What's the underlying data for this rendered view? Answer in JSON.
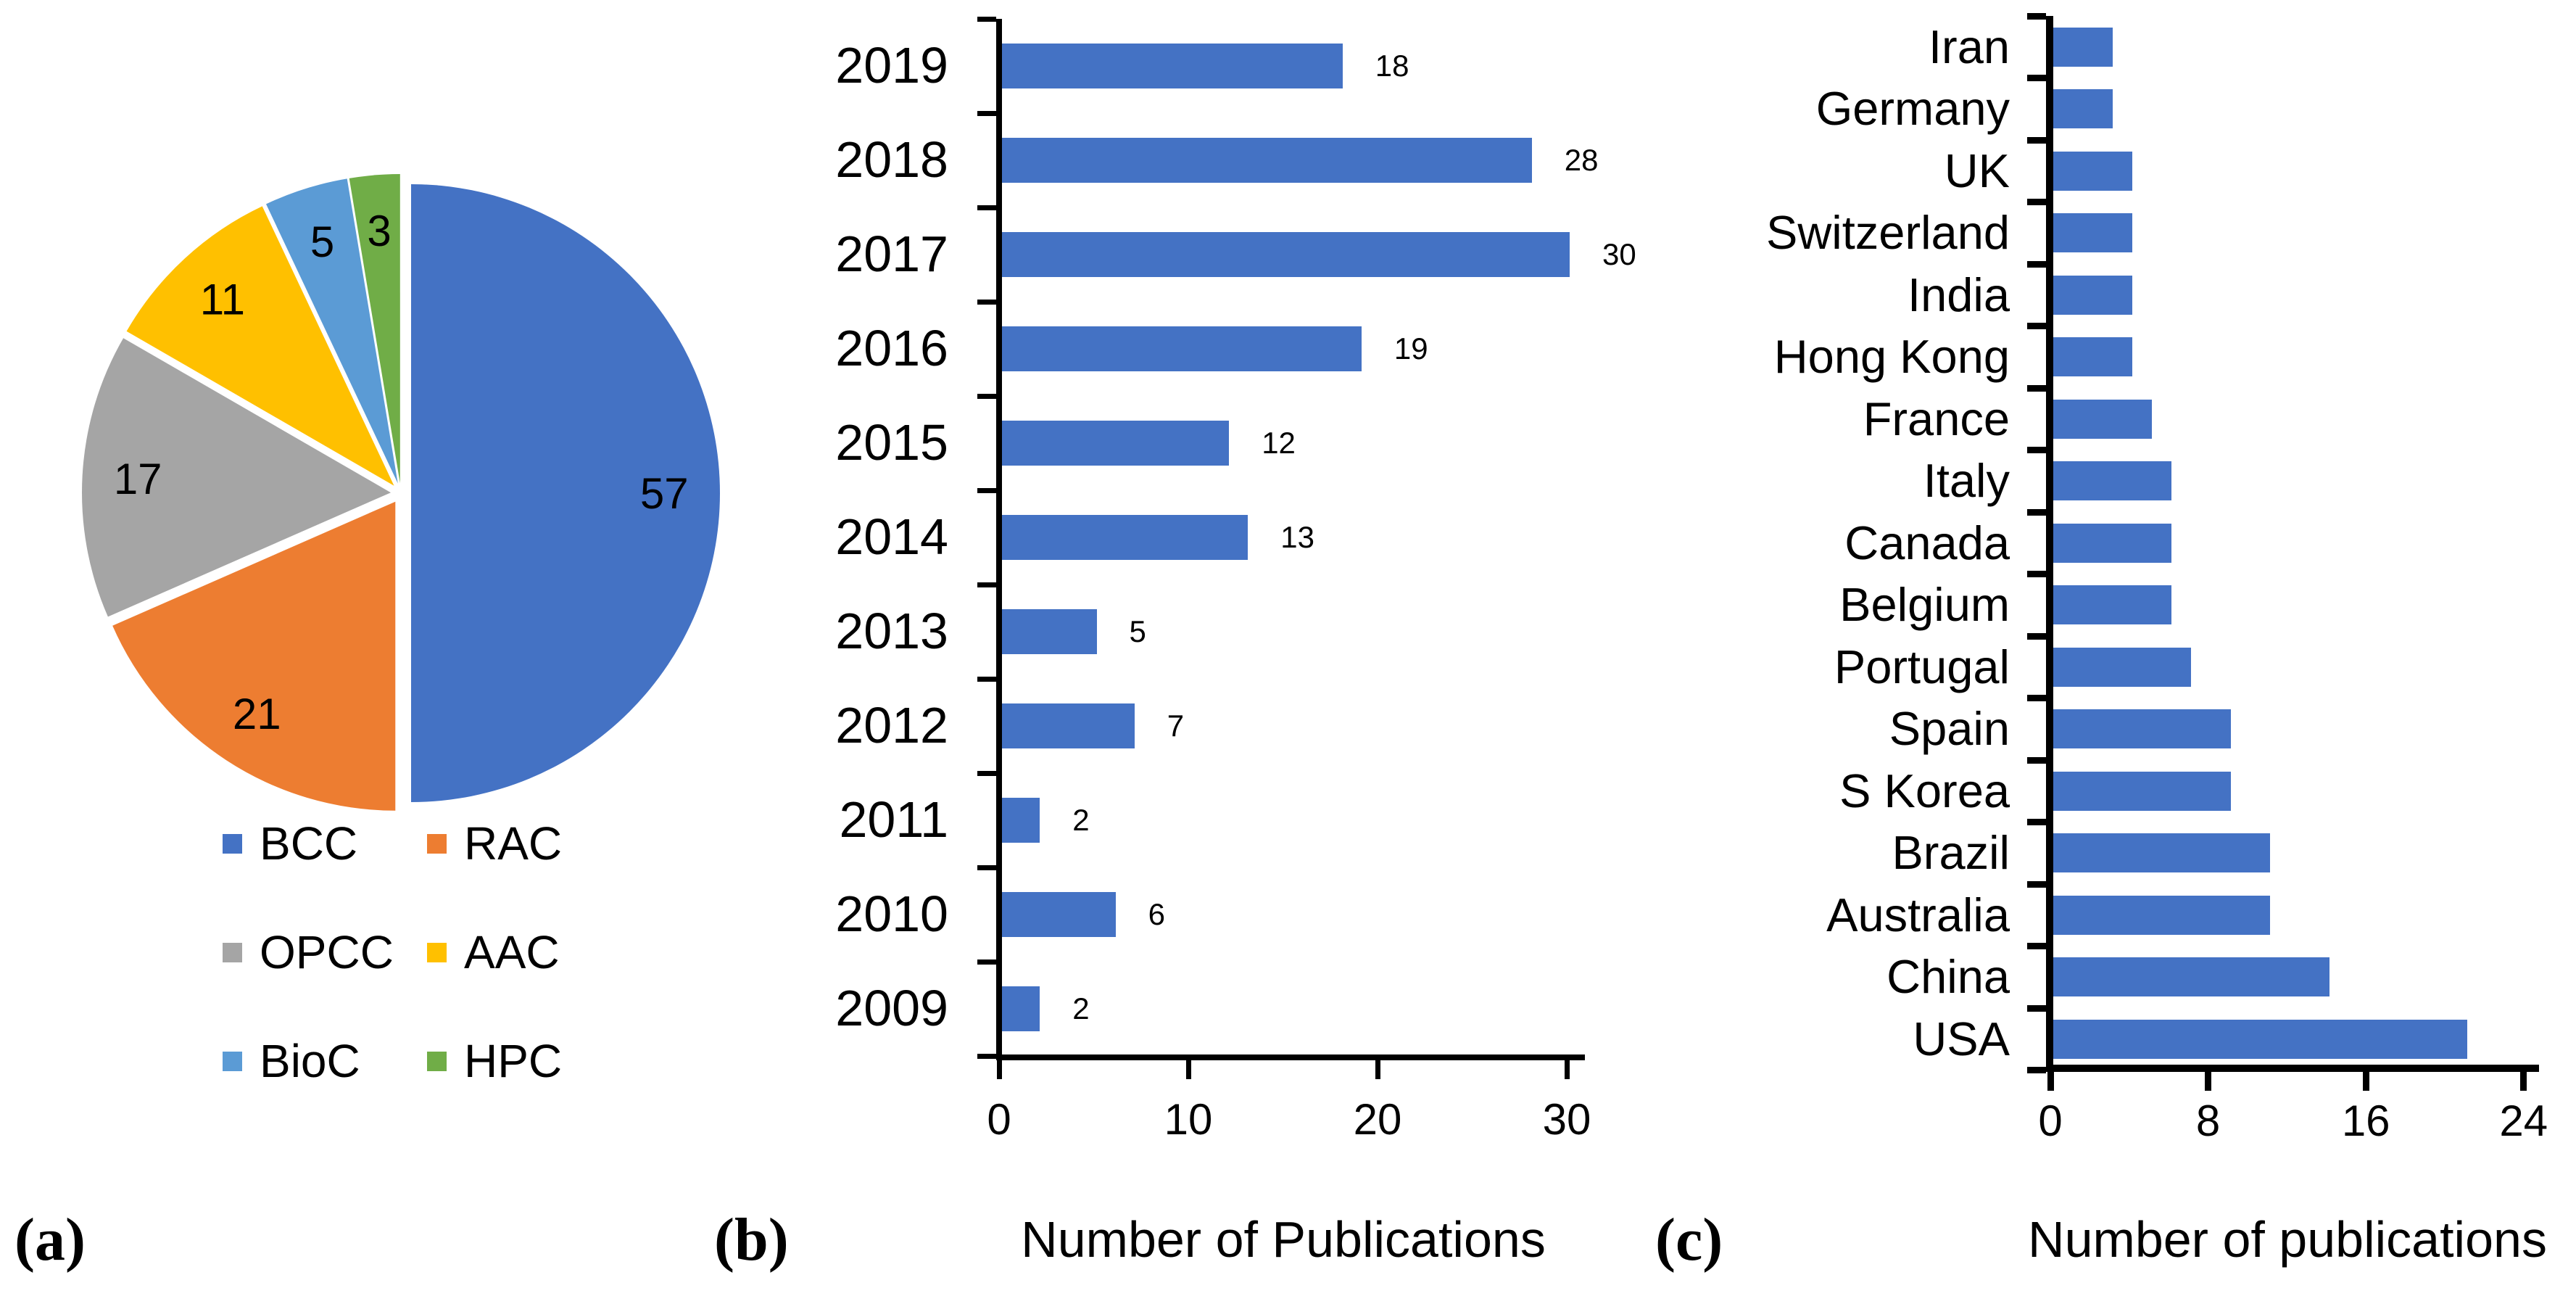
{
  "figure": {
    "background": "#ffffff",
    "text_color": "#000000",
    "panel_labels": {
      "a": "(a)",
      "b": "(b)",
      "c": "(c)"
    }
  },
  "chart_data": [
    {
      "id": "category-pie",
      "panel": "a",
      "type": "pie",
      "labels": [
        "BCC",
        "RAC",
        "OPCC",
        "AAC",
        "BioC",
        "HPC"
      ],
      "values": [
        57,
        21,
        17,
        11,
        5,
        3
      ],
      "colors": [
        "#4472C4",
        "#ED7D31",
        "#A5A5A5",
        "#FFC000",
        "#5B9BD5",
        "#70AD47"
      ],
      "show_data_labels": true,
      "start_angle_deg": 0,
      "direction": "clockwise",
      "exploded": true,
      "legend_position": "bottom",
      "legend_columns": 2,
      "legend_order": [
        "BCC",
        "RAC",
        "OPCC",
        "AAC",
        "BioC",
        "HPC"
      ]
    },
    {
      "id": "publications-by-year",
      "panel": "b",
      "type": "bar",
      "orientation": "horizontal",
      "categories": [
        "2019",
        "2018",
        "2017",
        "2016",
        "2015",
        "2014",
        "2013",
        "2012",
        "2011",
        "2010",
        "2009"
      ],
      "values": [
        18,
        28,
        30,
        19,
        12,
        13,
        5,
        7,
        2,
        6,
        2
      ],
      "bar_color": "#4472C4",
      "xlabel": "Number of Publications",
      "xlim": [
        0,
        30
      ],
      "xticks": [
        0,
        10,
        20,
        30
      ],
      "show_data_labels": true,
      "grid": false
    },
    {
      "id": "publications-by-country",
      "panel": "c",
      "type": "bar",
      "orientation": "horizontal",
      "categories": [
        "Iran",
        "Germany",
        "UK",
        "Switzerland",
        "India",
        "Hong Kong",
        "France",
        "Italy",
        "Canada",
        "Belgium",
        "Portugal",
        "Spain",
        "S Korea",
        "Brazil",
        "Australia",
        "China",
        "USA"
      ],
      "values": [
        3,
        3,
        4,
        4,
        4,
        4,
        5,
        6,
        6,
        6,
        7,
        9,
        9,
        11,
        11,
        14,
        21
      ],
      "bar_color": "#4472C4",
      "xlabel": "Number of publications",
      "xlim": [
        0,
        24
      ],
      "xticks": [
        0,
        8,
        16,
        24
      ],
      "show_data_labels": false,
      "grid": false
    }
  ]
}
